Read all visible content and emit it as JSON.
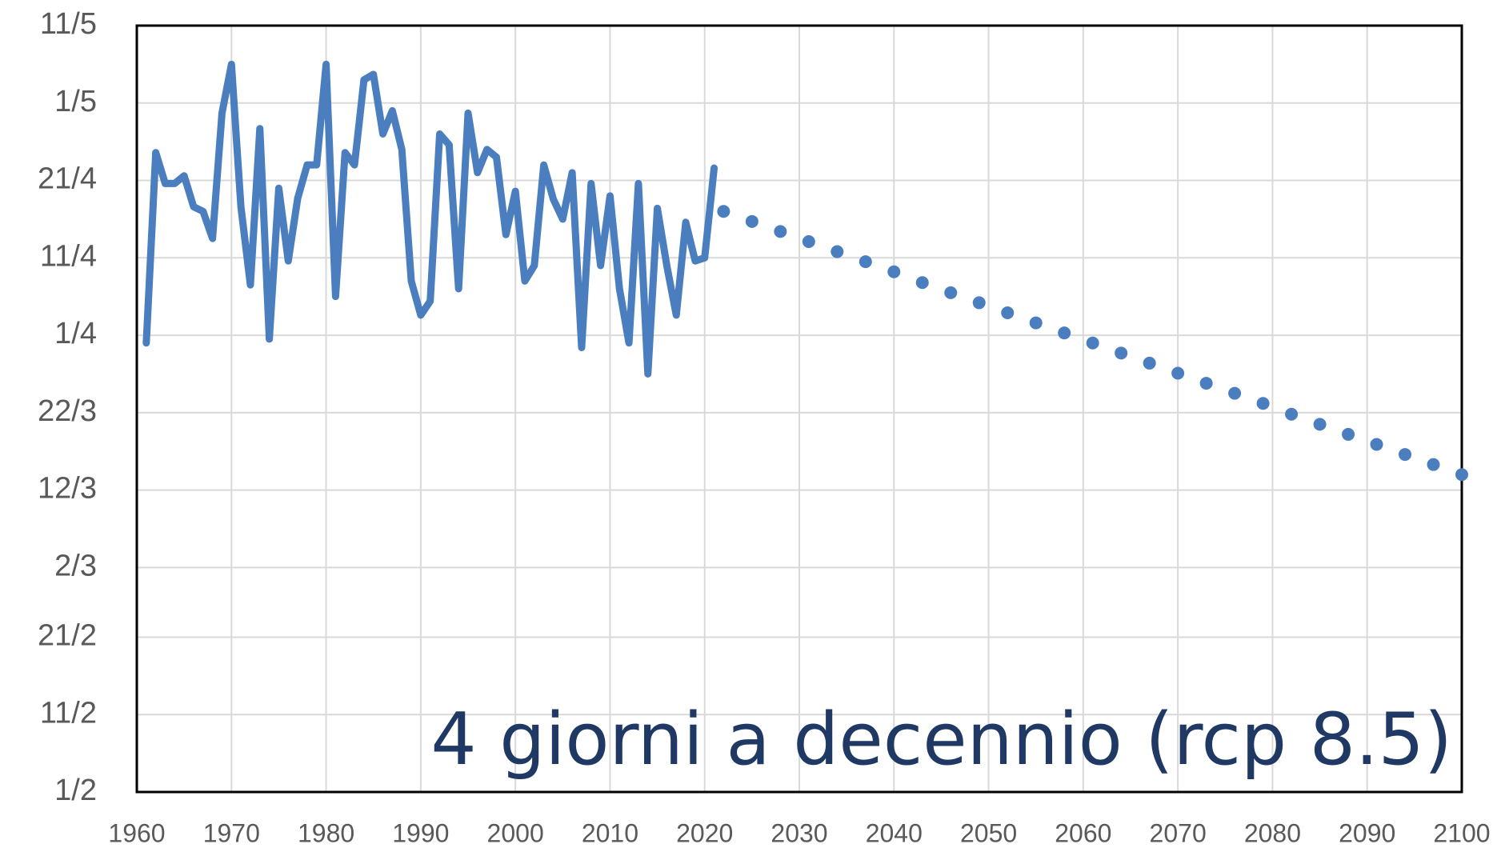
{
  "chart_data": {
    "type": "line",
    "annotation": "4 giorni a decennio  (rcp 8.5)",
    "xlim": [
      1960,
      2100
    ],
    "xticks": [
      1960,
      1970,
      1980,
      1990,
      2000,
      2010,
      2020,
      2030,
      2040,
      2050,
      2060,
      2070,
      2080,
      2090,
      2100
    ],
    "ylim": [
      32,
      131
    ],
    "yticks": [
      {
        "value": 32,
        "label": "1/2"
      },
      {
        "value": 42,
        "label": "11/2"
      },
      {
        "value": 52,
        "label": "21/2"
      },
      {
        "value": 61,
        "label": "2/3"
      },
      {
        "value": 71,
        "label": "12/3"
      },
      {
        "value": 81,
        "label": "22/3"
      },
      {
        "value": 91,
        "label": "1/4"
      },
      {
        "value": 101,
        "label": "11/4"
      },
      {
        "value": 111,
        "label": "21/4"
      },
      {
        "value": 121,
        "label": "1/5"
      },
      {
        "value": 131,
        "label": "11/5"
      }
    ],
    "grid": true,
    "series": [
      {
        "color": "#4a7ebf",
        "style": "solid",
        "x": [
          1961,
          1962,
          1963,
          1964,
          1965,
          1966,
          1967,
          1968,
          1969,
          1970,
          1971,
          1972,
          1973,
          1974,
          1975,
          1976,
          1977,
          1978,
          1979,
          1980,
          1981,
          1982,
          1983,
          1984,
          1985,
          1986,
          1987,
          1988,
          1989,
          1990,
          1991,
          1992,
          1993,
          1994,
          1995,
          1996,
          1997,
          1998,
          1999,
          2000,
          2001,
          2002,
          2003,
          2004,
          2005,
          2006,
          2007,
          2008,
          2009,
          2010,
          2011,
          2012,
          2013,
          2014,
          2015,
          2016,
          2017,
          2018,
          2019,
          2020,
          2021
        ],
        "values": [
          90,
          114.6,
          110.6,
          110.6,
          111.6,
          107.6,
          107,
          103.5,
          119.7,
          126,
          107.6,
          97.5,
          117.7,
          90.5,
          110,
          100.6,
          108.7,
          113,
          113,
          126,
          96,
          114.6,
          113,
          124,
          124.7,
          117,
          120,
          115,
          98,
          93.6,
          95.4,
          117,
          115.6,
          97,
          119.7,
          112,
          115,
          114,
          104,
          109.6,
          98,
          100,
          113,
          108.6,
          106,
          112,
          89.4,
          110.6,
          100,
          109,
          97,
          90,
          110.6,
          86,
          107.4,
          100,
          93.6,
          105.6,
          100.6,
          101,
          112.6
        ]
      },
      {
        "color": "#4a7ebf",
        "style": "dotted",
        "x": [
          2022,
          2025,
          2028,
          2031,
          2034,
          2037,
          2040,
          2043,
          2046,
          2049,
          2052,
          2055,
          2058,
          2061,
          2064,
          2067,
          2070,
          2073,
          2076,
          2079,
          2082,
          2085,
          2088,
          2091,
          2094,
          2097,
          2100
        ],
        "values": [
          107,
          105.7,
          104.4,
          103.1,
          101.8,
          100.5,
          99.2,
          97.8,
          96.5,
          95.2,
          93.9,
          92.6,
          91.3,
          90,
          88.7,
          87.4,
          86.1,
          84.8,
          83.5,
          82.2,
          80.8,
          79.5,
          78.2,
          76.9,
          75.6,
          74.3,
          73
        ]
      }
    ]
  }
}
